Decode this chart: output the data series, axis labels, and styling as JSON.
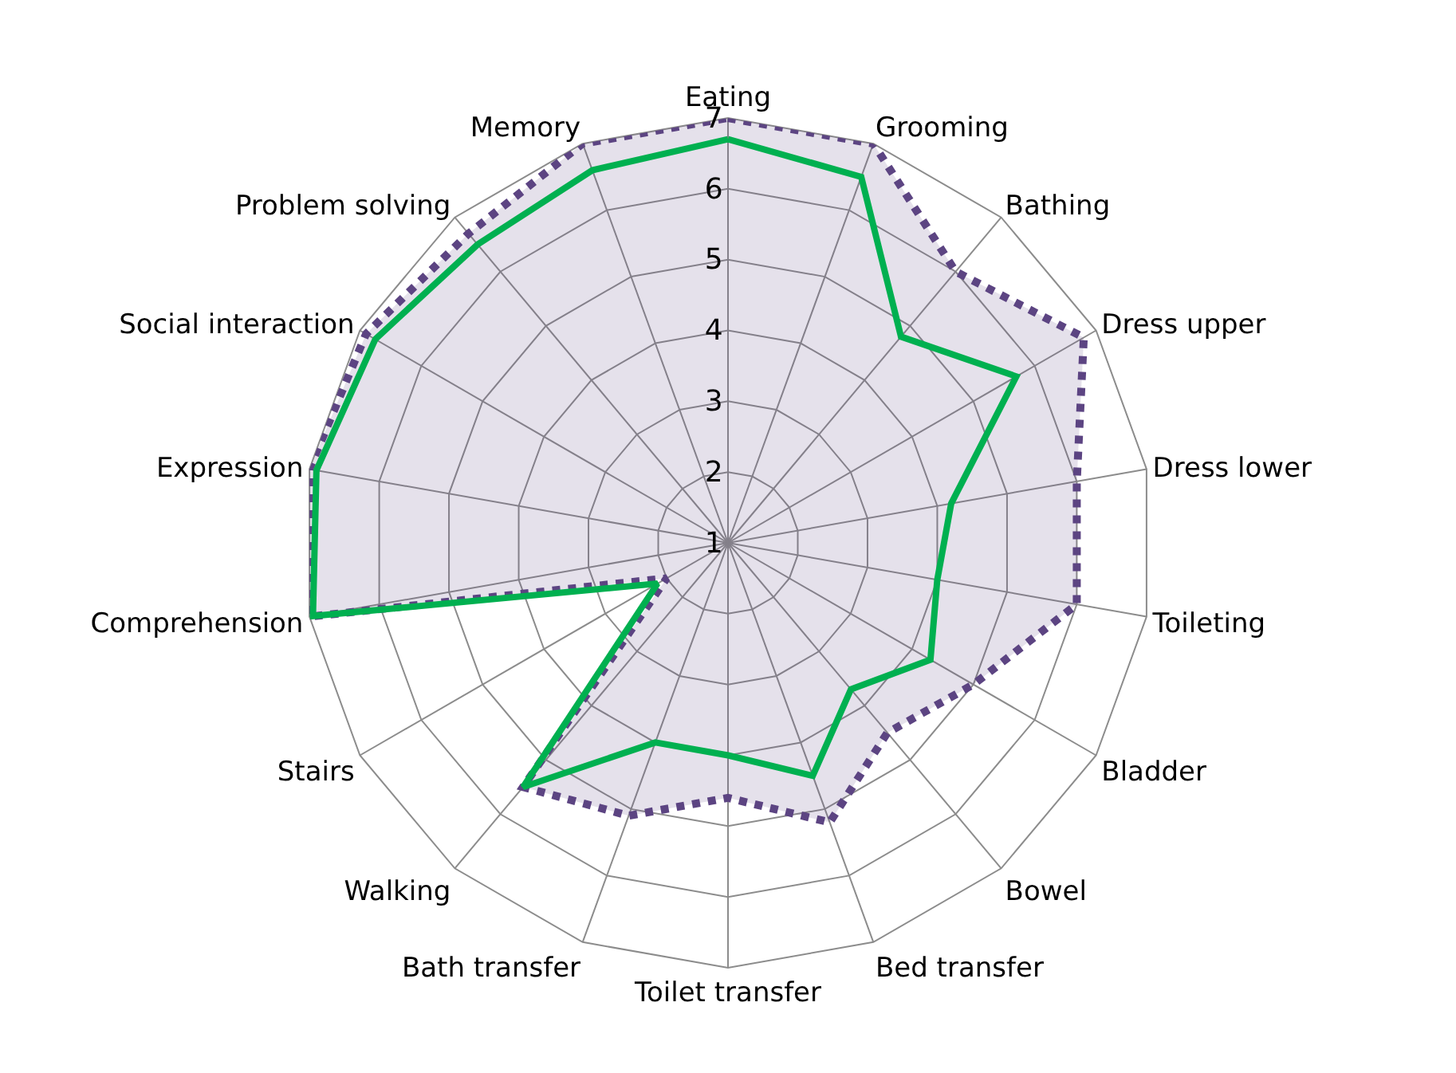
{
  "chart_data": {
    "type": "radar",
    "categories": [
      "Eating",
      "Grooming",
      "Bathing",
      "Dress upper",
      "Dress lower",
      "Toileting",
      "Bladder",
      "Bowel",
      "Bed transfer",
      "Toilet transfer",
      "Bath transfer",
      "Walking",
      "Stairs",
      "Comprehension",
      "Expression",
      "Social interaction",
      "Problem solving",
      "Memory"
    ],
    "ylim": [
      1,
      7
    ],
    "yticks": [
      1,
      2,
      3,
      4,
      5,
      6,
      7
    ],
    "grid": true,
    "series": [
      {
        "color": "#5c4482",
        "line_style": "dotted",
        "values": [
          7,
          7,
          6,
          6.8,
          6,
          6,
          5,
          4.5,
          5.2,
          4.6,
          5.1,
          5.5,
          2,
          7,
          7,
          6.9,
          6.7,
          7
        ]
      },
      {
        "color": "#00b050",
        "line_style": "solid",
        "values": [
          6.7,
          6.5,
          4.8,
          5.7,
          4.2,
          4,
          4.3,
          3.7,
          4.5,
          4,
          4,
          5.5,
          2.15,
          6.95,
          6.9,
          6.75,
          6.5,
          6.6
        ]
      }
    ]
  }
}
